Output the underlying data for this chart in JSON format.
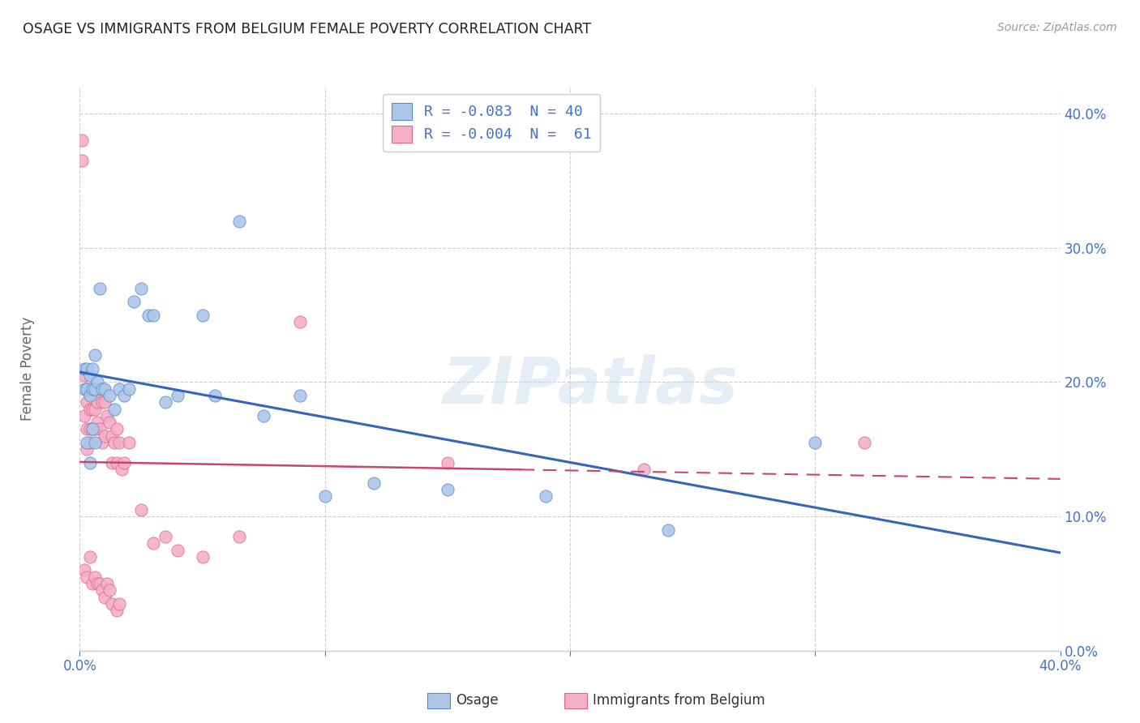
{
  "title": "OSAGE VS IMMIGRANTS FROM BELGIUM FEMALE POVERTY CORRELATION CHART",
  "source": "Source: ZipAtlas.com",
  "ylabel": "Female Poverty",
  "legend_labels": [
    "Osage",
    "Immigrants from Belgium"
  ],
  "osage_color": "#adc6e8",
  "belgium_color": "#f4afc8",
  "osage_edge_color": "#5588cc",
  "belgium_edge_color": "#dd6688",
  "osage_line_color": "#3366bb",
  "belgium_line_color": "#cc4466",
  "watermark": "ZIPatlas",
  "xlim": [
    0.0,
    0.4
  ],
  "ylim": [
    0.0,
    0.42
  ],
  "osage_x": [
    0.002,
    0.002,
    0.003,
    0.003,
    0.004,
    0.004,
    0.005,
    0.005,
    0.006,
    0.006,
    0.007,
    0.008,
    0.009,
    0.01,
    0.012,
    0.014,
    0.016,
    0.018,
    0.02,
    0.022,
    0.025,
    0.028,
    0.03,
    0.035,
    0.04,
    0.05,
    0.055,
    0.065,
    0.075,
    0.09,
    0.1,
    0.12,
    0.15,
    0.19,
    0.24,
    0.3,
    0.003,
    0.004,
    0.005,
    0.006
  ],
  "osage_y": [
    0.21,
    0.195,
    0.21,
    0.195,
    0.205,
    0.19,
    0.21,
    0.195,
    0.22,
    0.195,
    0.2,
    0.27,
    0.195,
    0.195,
    0.19,
    0.18,
    0.195,
    0.19,
    0.195,
    0.26,
    0.27,
    0.25,
    0.25,
    0.185,
    0.19,
    0.25,
    0.19,
    0.32,
    0.175,
    0.19,
    0.115,
    0.125,
    0.12,
    0.115,
    0.09,
    0.155,
    0.155,
    0.14,
    0.165,
    0.155
  ],
  "belgium_x": [
    0.001,
    0.001,
    0.002,
    0.002,
    0.002,
    0.003,
    0.003,
    0.003,
    0.003,
    0.003,
    0.004,
    0.004,
    0.004,
    0.004,
    0.004,
    0.005,
    0.005,
    0.005,
    0.005,
    0.006,
    0.006,
    0.006,
    0.006,
    0.007,
    0.007,
    0.007,
    0.008,
    0.008,
    0.008,
    0.009,
    0.009,
    0.009,
    0.01,
    0.01,
    0.01,
    0.011,
    0.011,
    0.012,
    0.012,
    0.013,
    0.013,
    0.013,
    0.014,
    0.015,
    0.015,
    0.015,
    0.016,
    0.016,
    0.017,
    0.018,
    0.02,
    0.025,
    0.03,
    0.035,
    0.04,
    0.05,
    0.065,
    0.09,
    0.15,
    0.23,
    0.32
  ],
  "belgium_y": [
    0.38,
    0.365,
    0.205,
    0.175,
    0.06,
    0.195,
    0.185,
    0.165,
    0.15,
    0.055,
    0.195,
    0.18,
    0.165,
    0.155,
    0.07,
    0.195,
    0.18,
    0.165,
    0.05,
    0.195,
    0.18,
    0.165,
    0.055,
    0.185,
    0.17,
    0.05,
    0.195,
    0.165,
    0.05,
    0.185,
    0.155,
    0.045,
    0.185,
    0.16,
    0.04,
    0.175,
    0.05,
    0.17,
    0.045,
    0.16,
    0.14,
    0.035,
    0.155,
    0.165,
    0.14,
    0.03,
    0.155,
    0.035,
    0.135,
    0.14,
    0.155,
    0.105,
    0.08,
    0.085,
    0.075,
    0.07,
    0.085,
    0.245,
    0.14,
    0.135,
    0.155
  ],
  "grid_color": "#cccccc",
  "background_color": "#ffffff",
  "tick_color": "#4472c4",
  "ytick_labels": [
    "0.0%",
    "10.0%",
    "20.0%",
    "30.0%",
    "40.0%"
  ],
  "ytick_values": [
    0.0,
    0.1,
    0.2,
    0.3,
    0.4
  ],
  "xtick_labels": [
    "0.0%",
    "",
    "",
    "",
    "40.0%"
  ],
  "xtick_values": [
    0.0,
    0.1,
    0.2,
    0.3,
    0.4
  ]
}
